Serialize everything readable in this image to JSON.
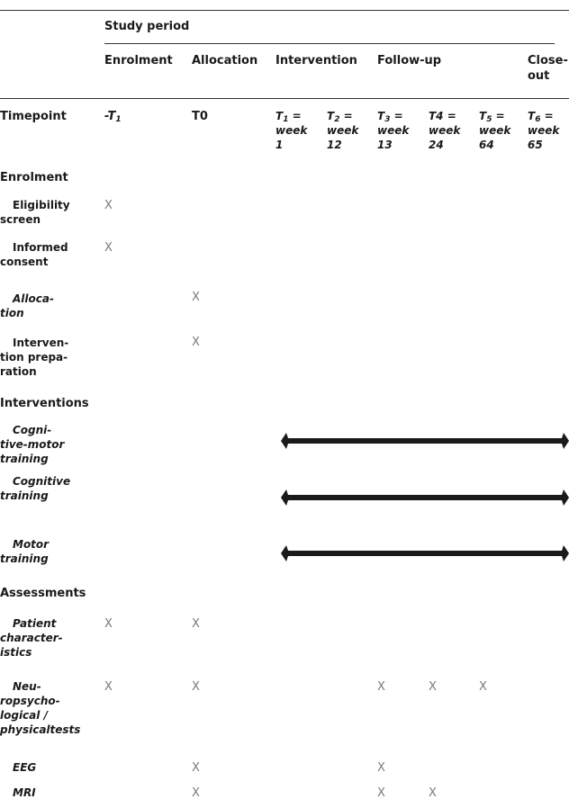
{
  "header": {
    "study_period": "Study period",
    "phases": {
      "enrolment": "Enrolment",
      "allocation": "Allocation",
      "intervention": "Intervention",
      "follow_up": "Follow-up",
      "close_out": "Close-\nout"
    }
  },
  "timepoint_row": {
    "label": "Timepoint",
    "t1_prefix": "-T",
    "t1_sub": "1",
    "t0": "T0",
    "cols": [
      {
        "t": "T",
        "sub": "1",
        "rest": " =\nweek\n1"
      },
      {
        "t": "T",
        "sub": "2",
        "rest": " =\nweek\n12"
      },
      {
        "t": "T",
        "sub": "3",
        "rest": " =\nweek\n13"
      },
      {
        "t": "T4",
        "sub": "",
        "rest": " =\nweek\n24"
      },
      {
        "t": "T",
        "sub": "5",
        "rest": " =\nweek\n64"
      },
      {
        "t": "T",
        "sub": "6",
        "rest": " =\nweek\n65"
      }
    ]
  },
  "mark": "X",
  "sections": {
    "enrolment": "Enrolment",
    "interventions": "Interventions",
    "assessments": "Assessments"
  },
  "rows": {
    "eligibility": "Eligibility\nscreen",
    "consent": "Informed\nconsent",
    "allocation": "Alloca-\ntion",
    "prep": "Interven-\ntion prepa-\nration",
    "cog_motor": "Cogni-\ntive-motor\ntraining",
    "cognitive": "Cognitive\ntraining",
    "motor": "Motor\ntraining",
    "patient": "Patient\ncharacter-\nistics",
    "neuro": "Neu-\nropsycho-\nlogical /\nphysicaltests",
    "eeg": "EEG",
    "mri": "MRI"
  },
  "colors": {
    "rule": "#333333",
    "bar": "#1a1a1a",
    "mark": "#7a7a7a"
  }
}
